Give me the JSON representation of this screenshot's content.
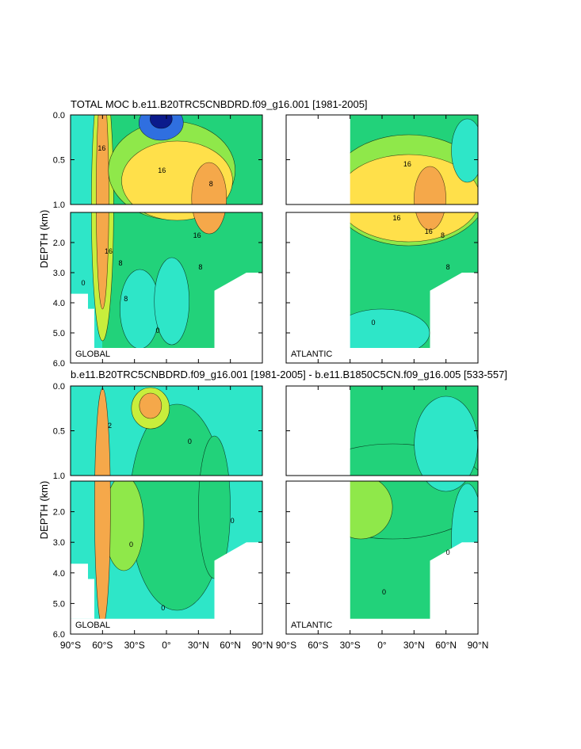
{
  "titles": {
    "top": "TOTAL MOC b.e11.B20TRC5CNBDRD.f09_g16.001 [1981-2005]",
    "bottom": "b.e11.B20TRC5CNBDRD.f09_g16.001 [1981-2005] - b.e11.B1850C5CN.f09_g16.005 [533-557]"
  },
  "y_axis_label": "DEPTH (km)",
  "basin_labels": {
    "global": "GLOBAL",
    "atlantic": "ATLANTIC"
  },
  "upper_y_ticks": [
    "0.0",
    "0.5",
    "1.0"
  ],
  "lower_y_ticks": [
    "2.0",
    "3.0",
    "4.0",
    "5.0",
    "6.0"
  ],
  "x_ticks": [
    "90°S",
    "60°S",
    "30°S",
    "0°",
    "30°N",
    "60°N",
    "90°N"
  ],
  "colors": {
    "blue_dark": "#0b1a8c",
    "blue": "#2f6fe0",
    "cyan": "#2ee6c8",
    "green": "#22d27a",
    "lime": "#8fe84a",
    "yellow_green": "#c8ee3c",
    "yellow": "#ffe04a",
    "orange": "#f5a84a",
    "orange_dark": "#e3883c"
  },
  "chart_data": [
    {
      "type": "heatmap",
      "panel": "total-global",
      "title": "TOTAL MOC b.e11.B20TRC5CNBDRD.f09_g16.001 [1981-2005]",
      "ylabel": "DEPTH (km)",
      "basin": "GLOBAL",
      "xlim": [
        -90,
        90
      ],
      "ylim": [
        6.0,
        0.0
      ],
      "contour_labels": [
        "16",
        "16",
        "8",
        "8",
        "16",
        "16",
        "8",
        "8",
        "0",
        "0"
      ]
    },
    {
      "type": "heatmap",
      "panel": "total-atlantic",
      "basin": "ATLANTIC",
      "xlim": [
        -90,
        90
      ],
      "ylim": [
        6.0,
        0.0
      ],
      "contour_labels": [
        "16",
        "16",
        "8",
        "16",
        "8",
        "0"
      ]
    },
    {
      "type": "heatmap",
      "panel": "difference-global",
      "title": "b.e11.B20TRC5CNBDRD.f09_g16.001 [1981-2005] - b.e11.B1850C5CN.f09_g16.005 [533-557]",
      "ylabel": "DEPTH (km)",
      "basin": "GLOBAL",
      "xlim": [
        -90,
        90
      ],
      "ylim": [
        6.0,
        0.0
      ],
      "contour_labels": [
        "2",
        "0",
        "0",
        "0",
        "0"
      ]
    },
    {
      "type": "heatmap",
      "panel": "difference-atlantic",
      "basin": "ATLANTIC",
      "xlim": [
        -90,
        90
      ],
      "ylim": [
        6.0,
        0.0
      ],
      "contour_labels": [
        "0",
        "0"
      ]
    }
  ]
}
